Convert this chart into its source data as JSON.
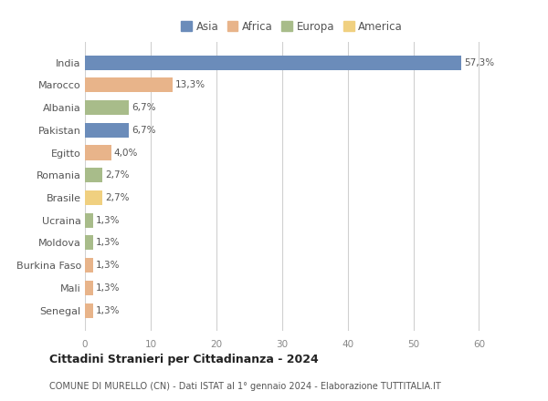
{
  "categories": [
    "India",
    "Marocco",
    "Albania",
    "Pakistan",
    "Egitto",
    "Romania",
    "Brasile",
    "Ucraina",
    "Moldova",
    "Burkina Faso",
    "Mali",
    "Senegal"
  ],
  "values": [
    57.3,
    13.3,
    6.7,
    6.7,
    4.0,
    2.7,
    2.7,
    1.3,
    1.3,
    1.3,
    1.3,
    1.3
  ],
  "labels": [
    "57,3%",
    "13,3%",
    "6,7%",
    "6,7%",
    "4,0%",
    "2,7%",
    "2,7%",
    "1,3%",
    "1,3%",
    "1,3%",
    "1,3%",
    "1,3%"
  ],
  "colors": [
    "#6b8cba",
    "#e8b48a",
    "#a8bc8a",
    "#6b8cba",
    "#e8b48a",
    "#a8bc8a",
    "#f0d080",
    "#a8bc8a",
    "#a8bc8a",
    "#e8b48a",
    "#e8b48a",
    "#e8b48a"
  ],
  "legend_labels": [
    "Asia",
    "Africa",
    "Europa",
    "America"
  ],
  "legend_colors": [
    "#6b8cba",
    "#e8b48a",
    "#a8bc8a",
    "#f0d080"
  ],
  "title": "Cittadini Stranieri per Cittadinanza - 2024",
  "subtitle": "COMUNE DI MURELLO (CN) - Dati ISTAT al 1° gennaio 2024 - Elaborazione TUTTITALIA.IT",
  "xlim": [
    0,
    63
  ],
  "xticks": [
    0,
    10,
    20,
    30,
    40,
    50,
    60
  ],
  "bg_color": "#ffffff",
  "grid_color": "#d0d0d0"
}
